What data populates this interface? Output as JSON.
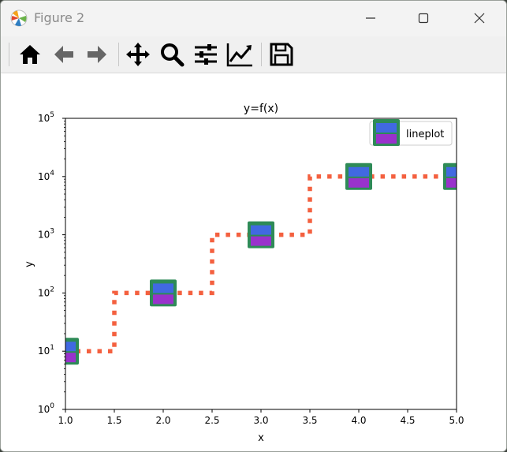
{
  "window": {
    "title": "Figure 2"
  },
  "toolbar": {
    "icons": [
      "home-icon",
      "back-arrow-icon",
      "forward-arrow-icon",
      "pan-move-icon",
      "zoom-magnifier-icon",
      "configure-subplots-icon",
      "edit-axis-icon",
      "save-floppy-icon"
    ]
  },
  "colors": {
    "line": "#f4603f",
    "marker_edge": "#2e8b57",
    "marker_top": "#4169e1",
    "marker_bottom": "#9932cc"
  },
  "chart_data": {
    "type": "line",
    "title": "y=f(x)",
    "xlabel": "x",
    "ylabel": "y",
    "xlim": [
      1.0,
      5.0
    ],
    "ylim": [
      1,
      100000
    ],
    "yscale": "log",
    "drawstyle": "steps-mid",
    "linestyle": "dotted",
    "x_ticks": [
      "1.0",
      "1.5",
      "2.0",
      "2.5",
      "3.0",
      "3.5",
      "4.0",
      "4.5",
      "5.0"
    ],
    "y_ticks": [
      {
        "base": "10",
        "exp": "0"
      },
      {
        "base": "10",
        "exp": "1"
      },
      {
        "base": "10",
        "exp": "2"
      },
      {
        "base": "10",
        "exp": "3"
      },
      {
        "base": "10",
        "exp": "4"
      },
      {
        "base": "10",
        "exp": "5"
      }
    ],
    "series": [
      {
        "name": "lineplot",
        "x": [
          1,
          2,
          3,
          4,
          5
        ],
        "y": [
          10,
          100,
          1000,
          10000,
          10000
        ]
      }
    ],
    "legend": {
      "placement": "top-right",
      "label": "lineplot"
    },
    "grid": false
  }
}
